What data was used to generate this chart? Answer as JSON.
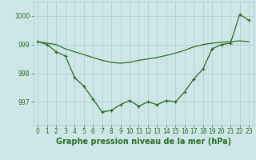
{
  "hours": [
    0,
    1,
    2,
    3,
    4,
    5,
    6,
    7,
    8,
    9,
    10,
    11,
    12,
    13,
    14,
    15,
    16,
    17,
    18,
    19,
    20,
    21,
    22,
    23
  ],
  "line_detailed": [
    999.1,
    999.0,
    998.75,
    998.6,
    997.85,
    997.55,
    997.1,
    996.65,
    996.7,
    996.9,
    997.05,
    996.85,
    997.0,
    996.9,
    997.05,
    997.0,
    997.35,
    997.8,
    998.15,
    998.85,
    999.0,
    999.05,
    1000.05,
    999.85
  ],
  "line_smooth": [
    999.1,
    999.05,
    999.0,
    998.85,
    998.75,
    998.65,
    998.55,
    998.45,
    998.38,
    998.35,
    998.38,
    998.45,
    998.5,
    998.55,
    998.62,
    998.7,
    998.8,
    998.92,
    999.0,
    999.05,
    999.08,
    999.1,
    999.13,
    999.1
  ],
  "line_color": "#2d6a2d",
  "bg_color": "#cce8e6",
  "grid_color": "#aacfcc",
  "yticks": [
    997,
    998,
    999,
    1000
  ],
  "ylim": [
    996.2,
    1000.5
  ],
  "xlim": [
    -0.5,
    23.5
  ],
  "xlabel": "Graphe pression niveau de la mer (hPa)",
  "xlabel_fontsize": 7,
  "tick_fontsize": 5.5,
  "marker": "+"
}
